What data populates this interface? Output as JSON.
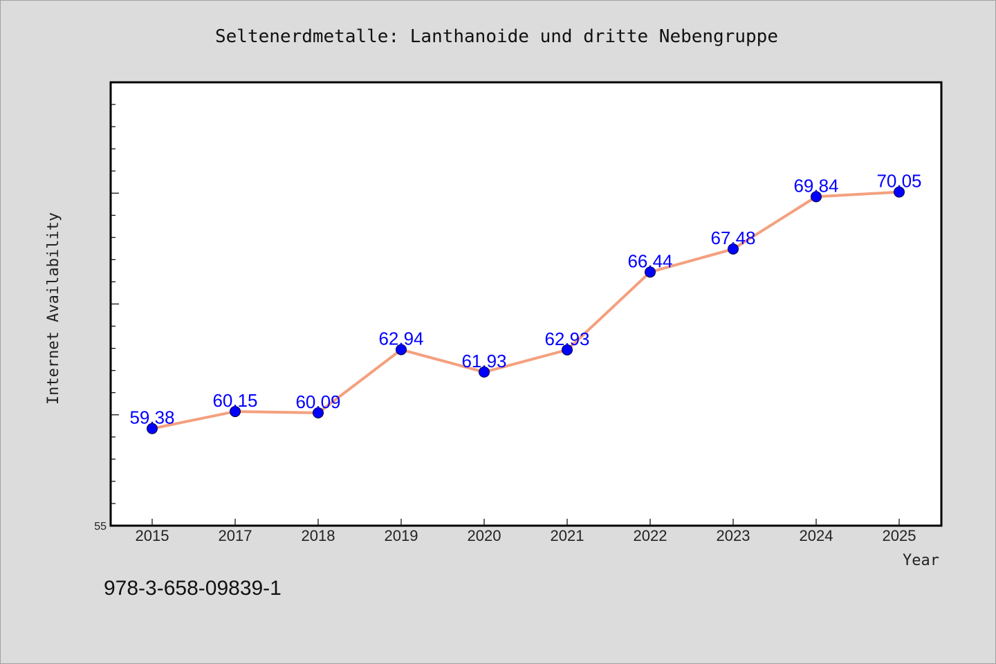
{
  "chart_data": {
    "type": "line",
    "title": "Seltenerdmetalle: Lanthanoide und dritte Nebengruppe",
    "xlabel": "Year",
    "ylabel": "Internet Availability",
    "categories": [
      "2015",
      "2017",
      "2018",
      "2019",
      "2020",
      "2021",
      "2022",
      "2023",
      "2024",
      "2025"
    ],
    "series": [
      {
        "values": [
          59.38,
          60.15,
          60.09,
          62.94,
          61.93,
          62.93,
          66.44,
          67.48,
          69.84,
          70.05
        ],
        "data_labels": [
          "59.38",
          "60.15",
          "60.09",
          "62.94",
          "61.93",
          "62.93",
          "66.44",
          "67.48",
          "69.84",
          "70.05"
        ]
      }
    ],
    "y_tick_labels": [
      "55"
    ],
    "ylim": [
      55,
      75
    ],
    "y_minor_step": 1,
    "y_major_step": 5,
    "grid": false,
    "line_color": "#f4a07e",
    "marker_color": "#0000ff",
    "label_color": "#0000ff",
    "plot_background": "#ffffff",
    "figure_background": "#dcdcdc"
  },
  "footer_text": "978-3-658-09839-1"
}
